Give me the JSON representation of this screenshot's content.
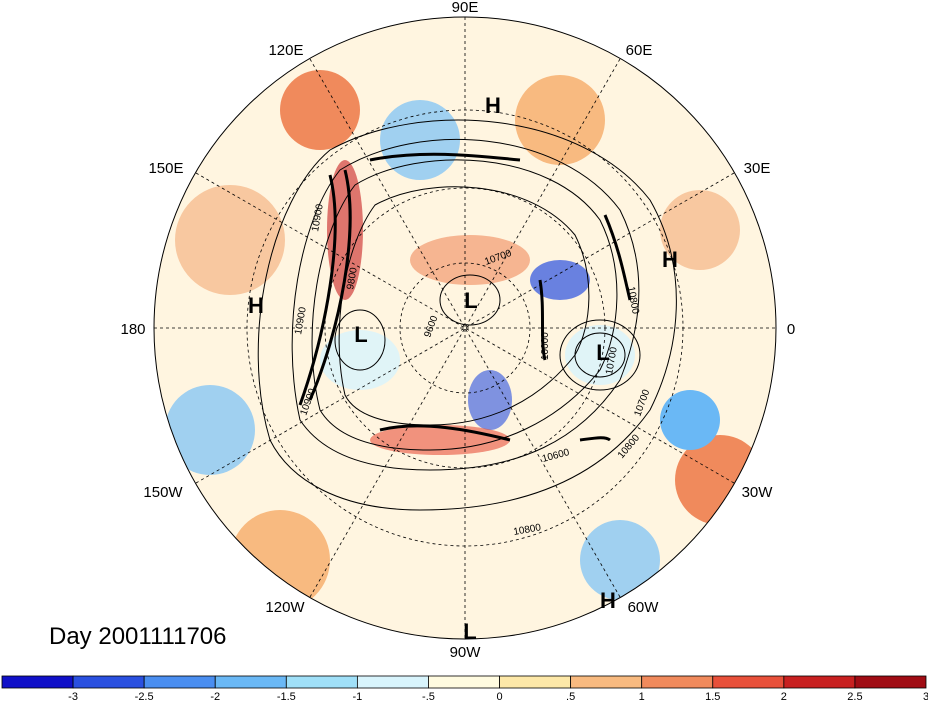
{
  "map": {
    "projection": "north-polar-stereographic",
    "date_label": "Day 2001111706",
    "longitude_labels": [
      {
        "text": "90E",
        "lon": 90
      },
      {
        "text": "60E",
        "lon": 60
      },
      {
        "text": "30E",
        "lon": 30
      },
      {
        "text": "0",
        "lon": 0
      },
      {
        "text": "30W",
        "lon": -30
      },
      {
        "text": "60W",
        "lon": -60
      },
      {
        "text": "90W",
        "lon": -90
      },
      {
        "text": "120W",
        "lon": -120
      },
      {
        "text": "150W",
        "lon": -150
      },
      {
        "text": "180",
        "lon": 180
      },
      {
        "text": "150E",
        "lon": 150
      },
      {
        "text": "120E",
        "lon": 120
      }
    ],
    "pressure_centers": [
      {
        "type": "H",
        "region": "Siberia"
      },
      {
        "type": "H",
        "region": "Europe"
      },
      {
        "type": "H",
        "region": "North Pacific"
      },
      {
        "type": "H",
        "region": "Western Atlantic"
      },
      {
        "type": "L",
        "region": "Arctic"
      },
      {
        "type": "L",
        "region": "Bering Sea"
      },
      {
        "type": "L",
        "region": "North Atlantic"
      },
      {
        "type": "L",
        "region": "Caribbean"
      }
    ],
    "contour_labels": [
      "10900",
      "10700",
      "10700",
      "10800",
      "10700",
      "10600",
      "10800",
      "10800",
      "9600",
      "10900",
      "9800",
      "10000",
      "10900"
    ]
  },
  "colorbar": {
    "colors": [
      "#1010c8",
      "#2a50e0",
      "#4a8ef0",
      "#6ab8f5",
      "#a0e0f8",
      "#d8f4fc",
      "#fffbe0",
      "#fde8a8",
      "#f8ba80",
      "#f08a5c",
      "#e8503a",
      "#c82020",
      "#a00c14"
    ],
    "tick_labels": [
      "-3",
      "-2.5",
      "-2",
      "-1.5",
      "-1",
      "-.5",
      "0",
      ".5",
      "1",
      "1.5",
      "2",
      "2.5",
      "3"
    ]
  }
}
